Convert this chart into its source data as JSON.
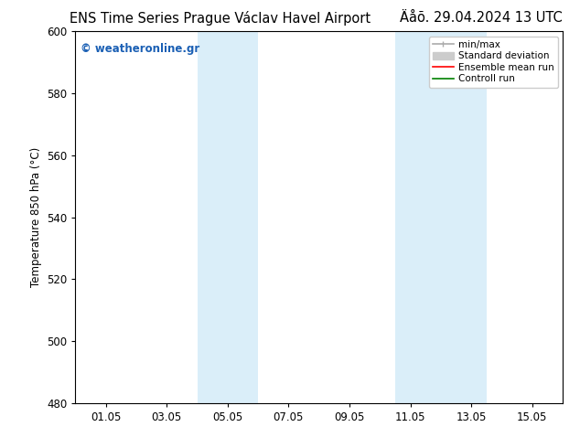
{
  "title_left": "ENS Time Series Prague Václav Havel Airport",
  "title_right": "Äåõ. 29.04.2024 13 UTC",
  "ylabel": "Temperature 850 hPa (°C)",
  "ylim": [
    480,
    600
  ],
  "yticks": [
    480,
    500,
    520,
    540,
    560,
    580,
    600
  ],
  "xtick_labels": [
    "01.05",
    "03.05",
    "05.05",
    "07.05",
    "09.05",
    "11.05",
    "13.05",
    "15.05"
  ],
  "xtick_positions": [
    1,
    3,
    5,
    7,
    9,
    11,
    13,
    15
  ],
  "xlim": [
    0,
    16
  ],
  "shaded_regions": [
    {
      "x_start": 4.0,
      "x_end": 6.0,
      "color": "#daeef9"
    },
    {
      "x_start": 10.5,
      "x_end": 13.5,
      "color": "#daeef9"
    }
  ],
  "watermark_text": "© weatheronline.gr",
  "watermark_color": "#1a5fb4",
  "legend_items": [
    {
      "label": "min/max",
      "color": "#aaaaaa",
      "lw": 1.2
    },
    {
      "label": "Standard deviation",
      "color": "#cccccc",
      "lw": 5
    },
    {
      "label": "Ensemble mean run",
      "color": "red",
      "lw": 1.2
    },
    {
      "label": "Controll run",
      "color": "green",
      "lw": 1.2
    }
  ],
  "bg_color": "#ffffff",
  "plot_bg_color": "#ffffff",
  "title_fontsize": 10.5,
  "axis_label_fontsize": 8.5,
  "tick_fontsize": 8.5,
  "legend_fontsize": 7.5
}
